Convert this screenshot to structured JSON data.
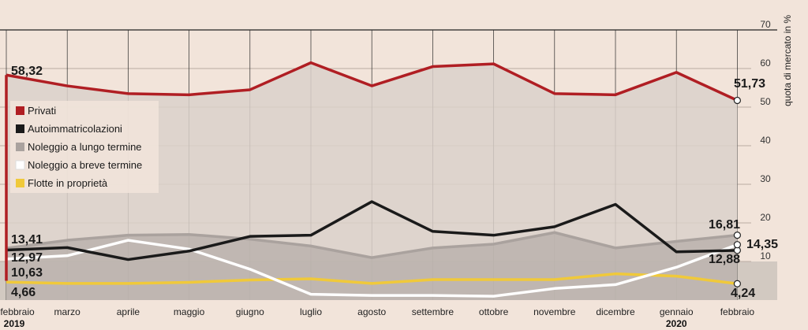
{
  "chart_data": {
    "type": "line",
    "ylabel": "quota di mercato in %",
    "ylim": [
      0,
      70
    ],
    "yticks": [
      "10",
      "20",
      "30",
      "40",
      "50",
      "60",
      "70"
    ],
    "categories": [
      "febbraio",
      "marzo",
      "aprile",
      "maggio",
      "giugno",
      "luglio",
      "agosto",
      "settembre",
      "ottobre",
      "novembre",
      "dicembre",
      "gennaio",
      "febbraio"
    ],
    "year_labels": [
      "2019",
      "2020"
    ],
    "grid": true,
    "legend_position": "left",
    "series": [
      {
        "name": "Privati",
        "color": "#b01e23",
        "values": [
          58.32,
          55.5,
          53.5,
          53.2,
          54.5,
          61.5,
          55.5,
          60.5,
          61.2,
          53.5,
          53.2,
          59,
          51.73
        ],
        "start_label": "58,32",
        "end_label": "51,73"
      },
      {
        "name": "Autoimmatricolazioni",
        "color": "#1a1a1a",
        "values": [
          12.97,
          13.6,
          10.5,
          12.7,
          16.5,
          16.8,
          25.5,
          17.8,
          16.8,
          19,
          24.8,
          12.5,
          12.88
        ],
        "start_label": "12,97",
        "end_label": "12,88"
      },
      {
        "name": "Noleggio a lungo termine",
        "color": "#aaa29e",
        "values": [
          13.41,
          15.5,
          16.8,
          17,
          15.8,
          14,
          11,
          13.5,
          14.5,
          17.5,
          13.5,
          15.2,
          16.81
        ],
        "start_label": "13,41",
        "end_label": "16,81"
      },
      {
        "name": "Noleggio a breve termine",
        "color": "#ffffff",
        "values": [
          10.63,
          11.5,
          15.5,
          13.2,
          8,
          1.5,
          1.2,
          1.2,
          1,
          3,
          4,
          8.5,
          14.35
        ],
        "start_label": "10,63",
        "end_label": "14,35"
      },
      {
        "name": "Flotte in proprietà",
        "color": "#f0c93a",
        "values": [
          4.66,
          4.3,
          4.3,
          4.6,
          5.2,
          5.5,
          4.3,
          5.3,
          5.3,
          5.3,
          6.8,
          6.2,
          4.24
        ],
        "start_label": "4,66",
        "end_label": "4,24"
      }
    ]
  }
}
